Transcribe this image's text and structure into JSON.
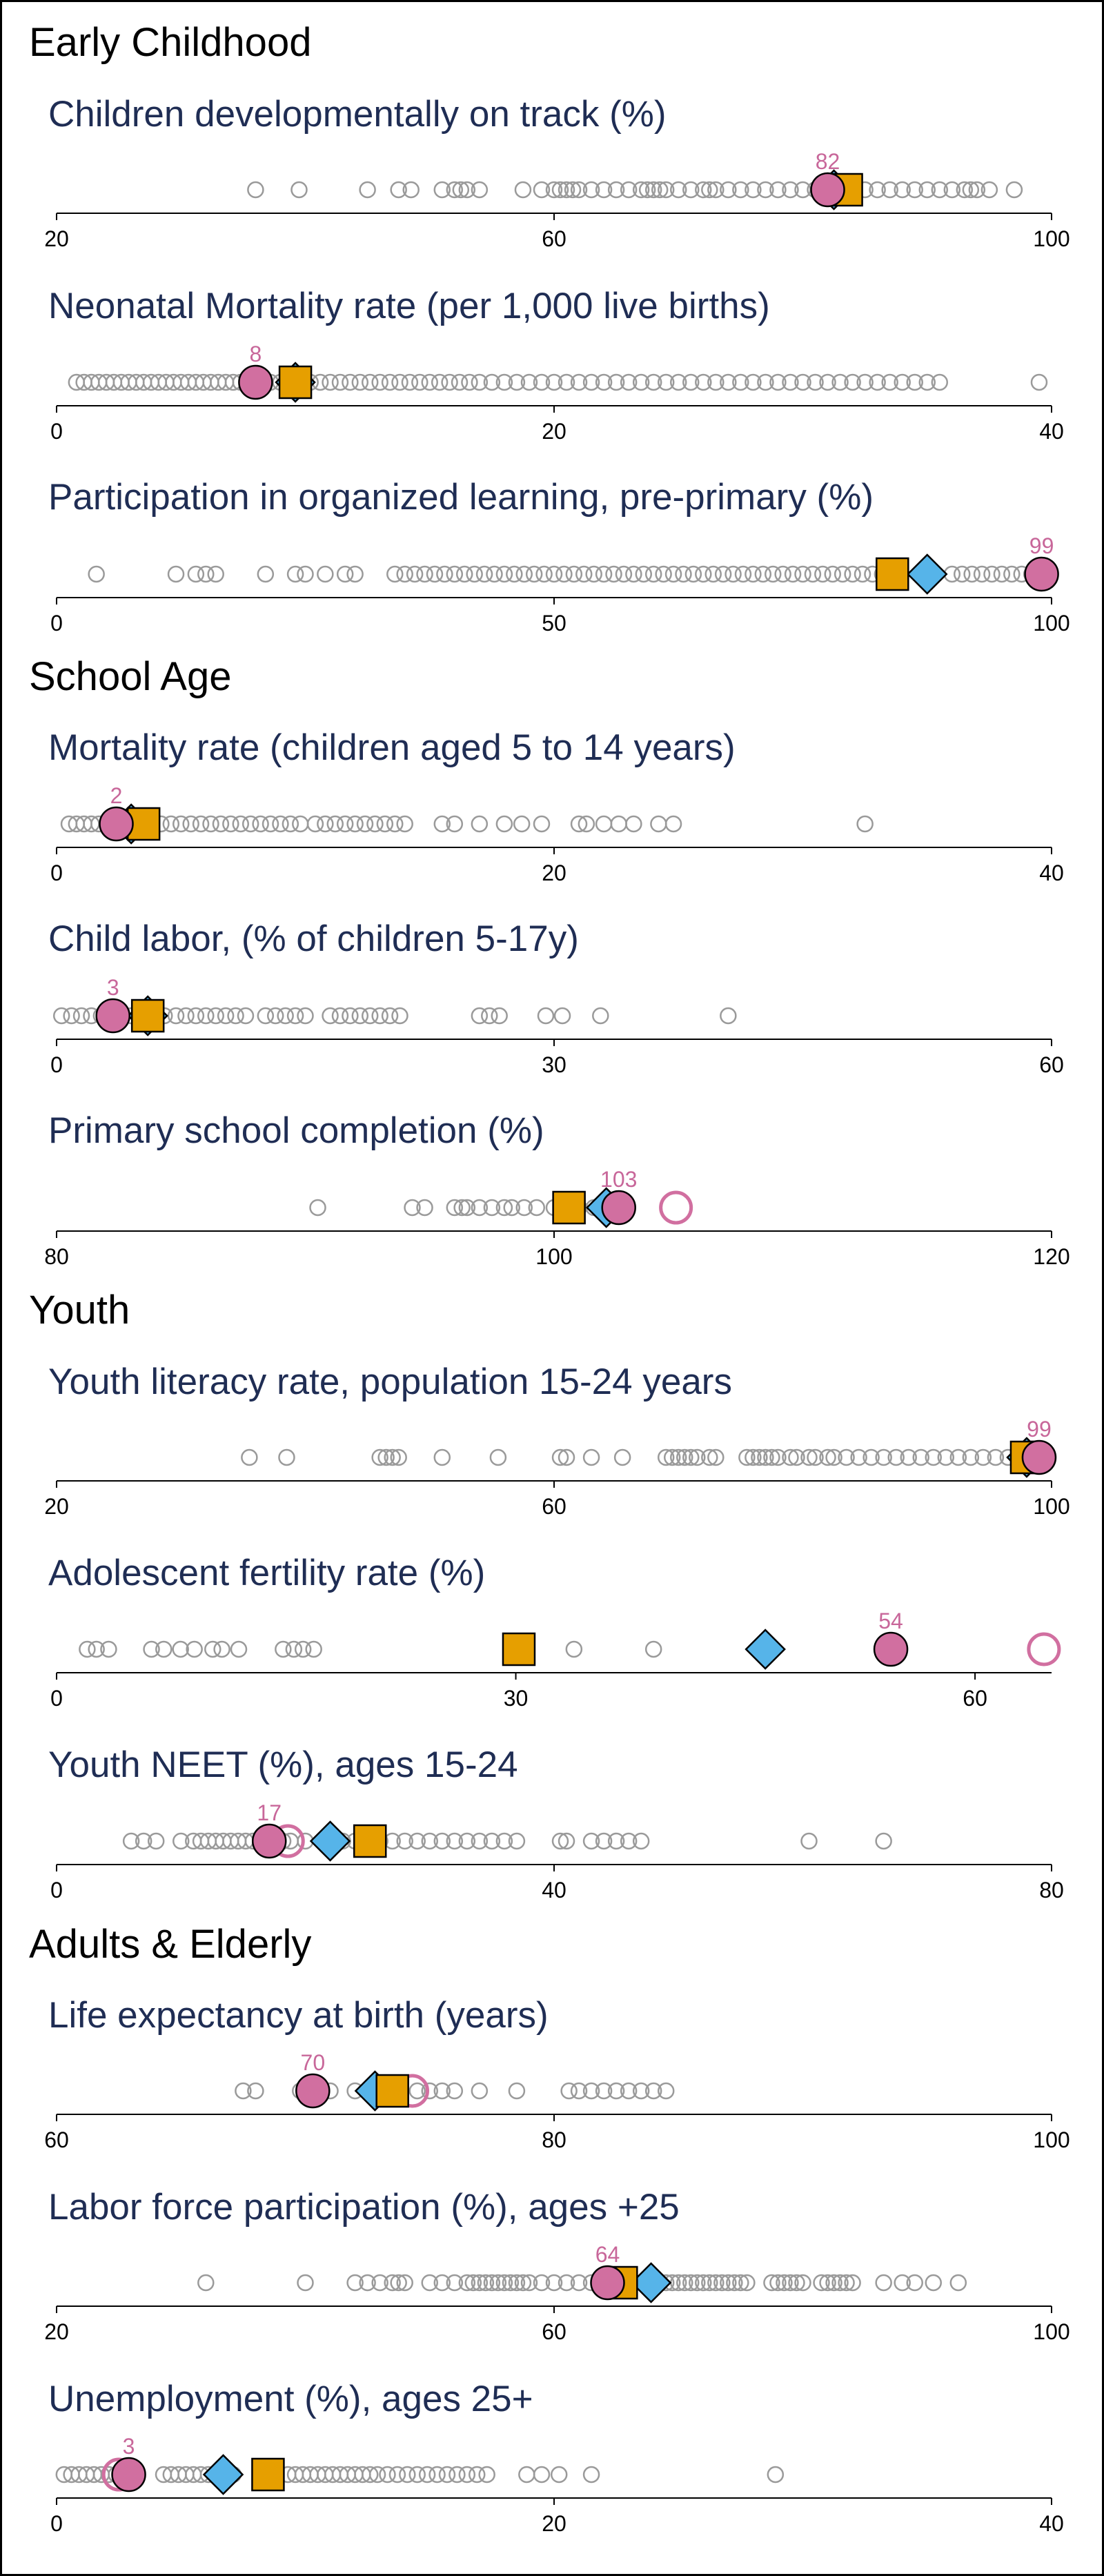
{
  "colors": {
    "background": "#ffffff",
    "border": "#000000",
    "title": "#1f2d54",
    "section": "#000000",
    "axis": "#000000",
    "other": "#9a9a9a",
    "country": "#d16fa0",
    "diamond": "#56b4e9",
    "square": "#e69f00",
    "value_label": "#c8679a"
  },
  "markers": {
    "other": "circle-outline-gray",
    "country": "circle-filled-pink",
    "ring": "circle-outline-pink",
    "diamond": "diamond-blue",
    "square": "square-orange"
  },
  "sections": [
    {
      "title": "Early Childhood"
    },
    {
      "title": "School Age"
    },
    {
      "title": "Youth"
    },
    {
      "title": "Adults & Elderly"
    }
  ],
  "chart_data": [
    {
      "type": "scatter",
      "section": 0,
      "title": "Children developmentally on track (%)",
      "xlim": [
        20,
        100
      ],
      "ticks": [
        20,
        60,
        100
      ],
      "tick_labels": [
        "20",
        "60",
        "100"
      ],
      "others": [
        36,
        39.5,
        45,
        47.5,
        48.5,
        51,
        52,
        52.5,
        53,
        54,
        57.5,
        59,
        60,
        60.5,
        61,
        61.5,
        62,
        63,
        64,
        65,
        66,
        67,
        67.5,
        68,
        68.5,
        69,
        70,
        71,
        72,
        72.5,
        73,
        74,
        75,
        76,
        77,
        78,
        79,
        80,
        81,
        83,
        84,
        85,
        86,
        87,
        88,
        89,
        90,
        91,
        92,
        93,
        93.5,
        94,
        95,
        97
      ],
      "country": 82,
      "country_label": "82",
      "ring": null,
      "diamond": 82.5,
      "square": 83.5
    },
    {
      "type": "scatter",
      "section": 0,
      "title": "Neonatal Mortality rate (per 1,000 live births)",
      "xlim": [
        0,
        40
      ],
      "ticks": [
        0,
        20,
        40
      ],
      "tick_labels": [
        "0",
        "20",
        "40"
      ],
      "others": [
        0.8,
        1.1,
        1.4,
        1.7,
        2,
        2.3,
        2.6,
        2.9,
        3.2,
        3.5,
        3.8,
        4.1,
        4.4,
        4.7,
        5,
        5.3,
        5.6,
        5.9,
        6.2,
        6.5,
        6.8,
        7.1,
        7.4,
        7.7,
        8.2,
        8.6,
        9,
        9.4,
        9.8,
        10.2,
        10.6,
        11,
        11.4,
        11.8,
        12.2,
        12.6,
        13,
        13.4,
        13.8,
        14.2,
        14.6,
        15,
        15.4,
        15.8,
        16.2,
        16.6,
        17,
        17.5,
        18,
        18.5,
        19,
        19.5,
        20,
        20.5,
        21,
        21.5,
        22,
        22.5,
        23,
        23.5,
        24,
        24.5,
        25,
        25.5,
        26,
        26.5,
        27,
        27.5,
        28,
        28.5,
        29,
        29.5,
        30,
        30.5,
        31,
        31.5,
        32,
        32.5,
        33,
        33.5,
        34,
        34.5,
        35,
        35.5,
        39.5
      ],
      "country": 8,
      "country_label": "8",
      "ring": null,
      "diamond": 9.6,
      "square": 9.6
    },
    {
      "type": "scatter",
      "section": 0,
      "title": "Participation in organized learning,  pre-primary (%)",
      "xlim": [
        0,
        100
      ],
      "ticks": [
        0,
        50,
        100
      ],
      "tick_labels": [
        "0",
        "50",
        "100"
      ],
      "others": [
        4,
        12,
        14,
        15,
        16,
        21,
        24,
        25,
        27,
        29,
        30,
        34,
        35,
        36,
        37,
        38,
        39,
        40,
        41,
        42,
        43,
        44,
        45,
        46,
        47,
        48,
        49,
        50,
        51,
        52,
        53,
        54,
        55,
        56,
        57,
        58,
        59,
        60,
        61,
        62,
        63,
        64,
        65,
        66,
        67,
        68,
        69,
        70,
        71,
        72,
        73,
        74,
        75,
        76,
        77,
        78,
        79,
        80,
        81,
        82,
        83,
        90,
        91,
        92,
        93,
        94,
        95,
        96,
        97,
        98
      ],
      "country": 99,
      "country_label": "99",
      "ring": null,
      "diamond": 87.5,
      "square": 84
    },
    {
      "type": "scatter",
      "section": 1,
      "title": "Mortality rate (children aged 5 to 14 years)",
      "xlim": [
        0,
        40
      ],
      "ticks": [
        0,
        20,
        40
      ],
      "tick_labels": [
        "0",
        "20",
        "40"
      ],
      "others": [
        0.5,
        0.8,
        1.1,
        1.4,
        1.7,
        2.3,
        2.6,
        2.9,
        3.4,
        3.8,
        4.2,
        4.6,
        5,
        5.4,
        5.8,
        6.2,
        6.6,
        7,
        7.4,
        7.8,
        8.2,
        8.6,
        9,
        9.4,
        9.8,
        10.4,
        10.8,
        11.2,
        11.6,
        12,
        12.4,
        12.8,
        13.2,
        13.6,
        14,
        15.5,
        16,
        17,
        18,
        18.7,
        19.5,
        21,
        21.3,
        22,
        22.6,
        23.2,
        24.2,
        24.8,
        32.5
      ],
      "country": 2.4,
      "country_label": "2",
      "ring": null,
      "diamond": 3,
      "square": 3.5
    },
    {
      "type": "scatter",
      "section": 1,
      "title": "Child labor, (% of children 5-17y)",
      "xlim": [
        0,
        60
      ],
      "ticks": [
        0,
        30,
        60
      ],
      "tick_labels": [
        "0",
        "30",
        "60"
      ],
      "others": [
        0.3,
        0.9,
        1.5,
        2.1,
        2.7,
        3.9,
        4.5,
        6.5,
        7.2,
        7.8,
        8.4,
        9,
        9.6,
        10.2,
        10.8,
        11.4,
        12.6,
        13.2,
        13.8,
        14.4,
        15,
        16.5,
        17.1,
        17.7,
        18.3,
        18.9,
        19.5,
        20.1,
        20.7,
        25.5,
        26.1,
        26.7,
        29.5,
        30.5,
        32.8,
        40.5
      ],
      "country": 3.4,
      "country_label": "3",
      "ring": null,
      "diamond": 5.5,
      "square": 5.5
    },
    {
      "type": "scatter",
      "section": 1,
      "title": "Primary school completion (%)",
      "xlim": [
        80,
        120
      ],
      "ticks": [
        80,
        100,
        120
      ],
      "tick_labels": [
        "80",
        "100",
        "120"
      ],
      "others": [
        90.5,
        94.3,
        94.8,
        96,
        96.3,
        96.5,
        97,
        97.5,
        98,
        98.3,
        98.8,
        99.3,
        100,
        100.5,
        101,
        101.6,
        101.9,
        102.1,
        101.8
      ],
      "country": 102.6,
      "country_label": "103",
      "ring": 104.9,
      "diamond": 102.1,
      "square": 100.6
    },
    {
      "type": "scatter",
      "section": 2,
      "title": "Youth literacy rate, population 15-24 years",
      "xlim": [
        20,
        100
      ],
      "ticks": [
        20,
        60,
        100
      ],
      "tick_labels": [
        "20",
        "60",
        "100"
      ],
      "others": [
        35.5,
        38.5,
        46,
        46.5,
        47,
        47.5,
        51,
        55.5,
        60.5,
        61,
        63,
        65.5,
        69,
        69.5,
        70,
        70.5,
        71,
        71.5,
        72.5,
        73,
        75.5,
        76,
        76.5,
        77,
        77.5,
        78,
        79,
        79.5,
        80.5,
        81,
        82,
        82.5,
        83.5,
        84.5,
        85.5,
        86.5,
        87.5,
        88.5,
        89.5,
        90.5,
        91.5,
        92.5,
        93.5,
        94.5,
        95.5,
        96.5,
        97.5
      ],
      "country": 99,
      "country_label": "99",
      "ring": 98.5,
      "diamond": 98,
      "square": 98
    },
    {
      "type": "scatter",
      "section": 2,
      "title": "Adolescent fertility rate (%)",
      "xlim": [
        0,
        65
      ],
      "ticks": [
        0,
        30,
        60
      ],
      "tick_labels": [
        "0",
        "30",
        "60"
      ],
      "others": [
        2,
        2.6,
        3.4,
        6.2,
        7,
        8.1,
        9,
        10.2,
        10.8,
        11.9,
        14.8,
        15.5,
        16.1,
        16.8,
        33.8,
        39
      ],
      "country": 54.5,
      "country_label": "54",
      "ring": 64.5,
      "diamond": 46.3,
      "square": 30.2
    },
    {
      "type": "scatter",
      "section": 2,
      "title": "Youth NEET (%), ages 15-24",
      "xlim": [
        0,
        80
      ],
      "ticks": [
        0,
        40,
        80
      ],
      "tick_labels": [
        "0",
        "40",
        "80"
      ],
      "others": [
        6,
        7,
        8,
        10,
        11,
        11.6,
        12.2,
        12.8,
        13.4,
        14,
        14.6,
        15.2,
        15.8,
        16.4,
        17.6,
        18.2,
        18.8,
        20,
        21.5,
        22.2,
        23,
        24,
        25,
        26,
        27,
        28,
        29,
        30,
        31,
        32,
        33,
        34,
        35,
        36,
        37,
        40.5,
        41,
        43,
        44,
        45,
        46,
        47,
        60.5,
        66.5
      ],
      "country": 17.1,
      "country_label": "17",
      "ring": 18.6,
      "diamond": 22,
      "square": 25.2
    },
    {
      "type": "scatter",
      "section": 3,
      "title": "Life expectancy at birth (years)",
      "xlim": [
        60,
        100
      ],
      "ticks": [
        60,
        80,
        100
      ],
      "tick_labels": [
        "60",
        "80",
        "100"
      ],
      "others": [
        67.5,
        68,
        69.8,
        70.5,
        71,
        72,
        73,
        74.5,
        75,
        75.5,
        76,
        77,
        78.5,
        80.6,
        81,
        81.5,
        82,
        82.5,
        83,
        83.5,
        84,
        84.5
      ],
      "country": 70.3,
      "country_label": "70",
      "ring": 74.3,
      "diamond": 72.8,
      "square": 73.5
    },
    {
      "type": "scatter",
      "section": 3,
      "title": "Labor force participation (%), ages +25",
      "xlim": [
        20,
        100
      ],
      "ticks": [
        20,
        60,
        100
      ],
      "tick_labels": [
        "20",
        "60",
        "100"
      ],
      "others": [
        32,
        40,
        44,
        45,
        46,
        47,
        47.5,
        48,
        50,
        51,
        52,
        53,
        53.5,
        54,
        54.5,
        55,
        55.5,
        56,
        56.5,
        57,
        57.5,
        58,
        59,
        60,
        61,
        62,
        63,
        66,
        68.5,
        69,
        69.5,
        70,
        70.5,
        71,
        71.5,
        72,
        72.5,
        73,
        73.5,
        74,
        74.5,
        75,
        75.5,
        77.5,
        78,
        78.5,
        79,
        79.5,
        80,
        81.5,
        82,
        82.5,
        83,
        83.5,
        84,
        86.5,
        88,
        89,
        90.5,
        92.5
      ],
      "country": 64.3,
      "country_label": "64",
      "ring": null,
      "diamond": 67.8,
      "square": 65.4
    },
    {
      "type": "scatter",
      "section": 3,
      "title": "Unemployment (%), ages 25+",
      "xlim": [
        0,
        40
      ],
      "ticks": [
        0,
        20,
        40
      ],
      "tick_labels": [
        "0",
        "20",
        "40"
      ],
      "others": [
        0.3,
        0.6,
        0.9,
        1.2,
        1.5,
        1.8,
        2.1,
        2.4,
        4.3,
        4.6,
        4.9,
        5.2,
        5.5,
        5.8,
        6.1,
        6.8,
        7.1,
        9.3,
        9.6,
        9.9,
        10.2,
        10.5,
        10.8,
        11.1,
        11.4,
        11.7,
        12,
        12.3,
        12.6,
        12.9,
        13.3,
        13.7,
        14.1,
        14.5,
        14.9,
        15.3,
        15.7,
        16.1,
        16.5,
        16.9,
        17.3,
        18.9,
        19.5,
        20.2,
        21.5,
        28.9
      ],
      "country": 2.9,
      "country_label": "3",
      "ring": 2.5,
      "diamond": 6.7,
      "square": 8.5
    }
  ]
}
